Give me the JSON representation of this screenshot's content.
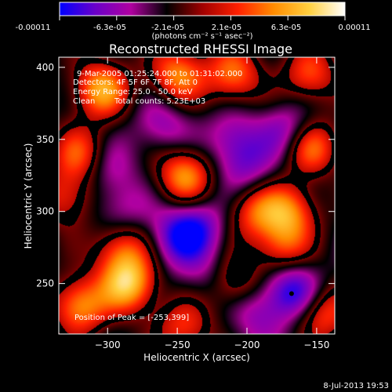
{
  "colorbar": {
    "tick_labels": [
      "-0.00011",
      "-6.3e-05",
      "-2.1e-05",
      "2.1e-05",
      "6.3e-05",
      "0.00011"
    ],
    "units": "(photons cm⁻² s⁻¹ asec⁻²)",
    "range": [
      -0.00011,
      0.00011
    ],
    "colors": [
      "#0000ff",
      "#6a00c8",
      "#b000a0",
      "#000000",
      "#a00000",
      "#ff2000",
      "#ff8c00",
      "#ffd040",
      "#ffffff"
    ]
  },
  "chart_data": {
    "type": "heatmap",
    "title": "Reconstructed RHESSI Image",
    "xlabel": "Heliocentric X (arcsec)",
    "ylabel": "Heliocentric Y (arcsec)",
    "xlim": [
      -335,
      -137
    ],
    "ylim": [
      215,
      407
    ],
    "xticks": [
      -300,
      -250,
      -200,
      -150
    ],
    "xtick_labels": [
      "−300",
      "−250",
      "−200",
      "−150"
    ],
    "yticks": [
      250,
      300,
      350,
      400
    ],
    "ytick_labels": [
      "250",
      "300",
      "350",
      "400"
    ],
    "annotations": {
      "line1": "9-Mar-2005 01:25:24.000 to 01:31:02.000",
      "line2": "Detectors: 4F 5F 6F 7F 8F, Att 0",
      "line3": "Energy Range: 25.0 - 50.0 keV",
      "line4_method": "Clean",
      "line4_counts": "Total counts: 5.23E+03",
      "peak": "Position of Peak = [-253,399]"
    },
    "peak_position": [
      -253,
      399
    ],
    "marked_point": [
      -168,
      243
    ],
    "sources": [
      {
        "x": -305,
        "y": 385,
        "v": 0.85
      },
      {
        "x": -250,
        "y": 395,
        "v": 0.75
      },
      {
        "x": -210,
        "y": 395,
        "v": 0.7
      },
      {
        "x": -155,
        "y": 395,
        "v": 0.6
      },
      {
        "x": -320,
        "y": 340,
        "v": 0.6
      },
      {
        "x": -245,
        "y": 325,
        "v": 0.8
      },
      {
        "x": -155,
        "y": 345,
        "v": 0.75
      },
      {
        "x": -330,
        "y": 310,
        "v": 0.5
      },
      {
        "x": -195,
        "y": 300,
        "v": 0.55
      },
      {
        "x": -170,
        "y": 300,
        "v": 0.7
      },
      {
        "x": -290,
        "y": 275,
        "v": 0.6
      },
      {
        "x": -285,
        "y": 250,
        "v": 0.95
      },
      {
        "x": -320,
        "y": 235,
        "v": 0.8
      },
      {
        "x": -210,
        "y": 250,
        "v": 0.5
      },
      {
        "x": -175,
        "y": 275,
        "v": 0.55
      },
      {
        "x": -145,
        "y": 230,
        "v": 0.6
      },
      {
        "x": -245,
        "y": 220,
        "v": 0.55
      },
      {
        "x": -260,
        "y": 360,
        "v": -0.35
      },
      {
        "x": -210,
        "y": 350,
        "v": -0.4
      },
      {
        "x": -170,
        "y": 355,
        "v": -0.5
      },
      {
        "x": -235,
        "y": 290,
        "v": -0.45
      },
      {
        "x": -250,
        "y": 282,
        "v": -0.55
      },
      {
        "x": -300,
        "y": 330,
        "v": -0.3
      },
      {
        "x": -200,
        "y": 330,
        "v": -0.35
      },
      {
        "x": -168,
        "y": 245,
        "v": -0.7
      },
      {
        "x": -195,
        "y": 230,
        "v": -0.35
      },
      {
        "x": -290,
        "y": 300,
        "v": -0.3
      },
      {
        "x": -230,
        "y": 255,
        "v": -0.25
      }
    ]
  },
  "footer": {
    "date": "8-Jul-2013 19:53"
  }
}
